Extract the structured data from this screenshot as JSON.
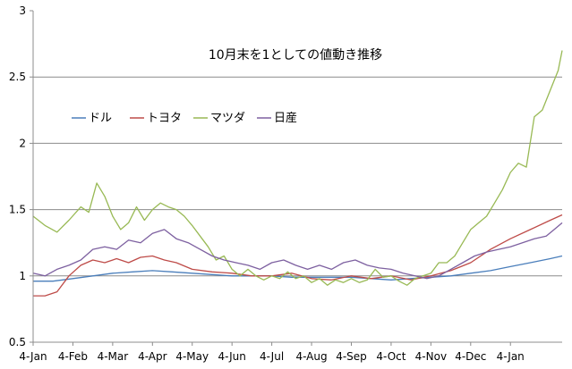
{
  "chart_data": {
    "type": "line",
    "title": "10月末を1としての値動き推移",
    "xlabel": "",
    "ylabel": "",
    "ylim": [
      0.5,
      3
    ],
    "yticks": [
      {
        "label": "0.5",
        "value": 0.5
      },
      {
        "label": "1",
        "value": 1
      },
      {
        "label": "1.5",
        "value": 1.5
      },
      {
        "label": "2",
        "value": 2
      },
      {
        "label": "2.5",
        "value": 2.5
      },
      {
        "label": "3",
        "value": 3
      }
    ],
    "x_tick_labels": [
      "4-Jan",
      "4-Feb",
      "4-Mar",
      "4-Apr",
      "4-May",
      "4-Jun",
      "4-Jul",
      "4-Aug",
      "4-Sep",
      "4-Oct",
      "4-Nov",
      "4-Dec",
      "4-Jan"
    ],
    "x_range": [
      0,
      13.3
    ],
    "grid": "horizontal at 1, 1.5, 2, 2.5",
    "legend_position": "upper-left inside plot",
    "series": [
      {
        "name": "ドル",
        "color": "#4a7ebb",
        "points": [
          [
            0,
            0.96
          ],
          [
            0.5,
            0.96
          ],
          [
            1,
            0.98
          ],
          [
            1.5,
            1.0
          ],
          [
            2,
            1.02
          ],
          [
            2.5,
            1.03
          ],
          [
            3,
            1.04
          ],
          [
            3.5,
            1.03
          ],
          [
            4,
            1.02
          ],
          [
            4.5,
            1.01
          ],
          [
            5,
            1.0
          ],
          [
            5.5,
            1.0
          ],
          [
            6,
            1.0
          ],
          [
            6.5,
            0.99
          ],
          [
            7,
            0.99
          ],
          [
            7.5,
            0.99
          ],
          [
            8,
            0.99
          ],
          [
            8.5,
            0.98
          ],
          [
            9,
            0.97
          ],
          [
            9.5,
            0.98
          ],
          [
            10,
            0.99
          ],
          [
            10.5,
            1.0
          ],
          [
            11,
            1.02
          ],
          [
            11.5,
            1.04
          ],
          [
            12,
            1.07
          ],
          [
            12.5,
            1.1
          ],
          [
            13,
            1.13
          ],
          [
            13.3,
            1.15
          ]
        ]
      },
      {
        "name": "トヨタ",
        "color": "#be4b48",
        "points": [
          [
            0,
            0.85
          ],
          [
            0.3,
            0.85
          ],
          [
            0.6,
            0.88
          ],
          [
            0.9,
            1.0
          ],
          [
            1.2,
            1.08
          ],
          [
            1.5,
            1.12
          ],
          [
            1.8,
            1.1
          ],
          [
            2.1,
            1.13
          ],
          [
            2.4,
            1.1
          ],
          [
            2.7,
            1.14
          ],
          [
            3.0,
            1.15
          ],
          [
            3.3,
            1.12
          ],
          [
            3.6,
            1.1
          ],
          [
            4.0,
            1.05
          ],
          [
            4.5,
            1.03
          ],
          [
            5,
            1.02
          ],
          [
            5.5,
            1.0
          ],
          [
            6,
            1.0
          ],
          [
            6.5,
            1.02
          ],
          [
            7,
            0.98
          ],
          [
            7.5,
            0.97
          ],
          [
            8,
            1.0
          ],
          [
            8.5,
            0.98
          ],
          [
            9,
            1.0
          ],
          [
            9.5,
            0.97
          ],
          [
            10,
            1.0
          ],
          [
            10.5,
            1.04
          ],
          [
            11,
            1.1
          ],
          [
            11.5,
            1.2
          ],
          [
            12,
            1.28
          ],
          [
            12.5,
            1.35
          ],
          [
            13,
            1.42
          ],
          [
            13.3,
            1.46
          ]
        ]
      },
      {
        "name": "マツダ",
        "color": "#98b954",
        "points": [
          [
            0,
            1.45
          ],
          [
            0.3,
            1.38
          ],
          [
            0.6,
            1.33
          ],
          [
            0.9,
            1.42
          ],
          [
            1.2,
            1.52
          ],
          [
            1.4,
            1.48
          ],
          [
            1.6,
            1.7
          ],
          [
            1.8,
            1.6
          ],
          [
            2.0,
            1.45
          ],
          [
            2.2,
            1.35
          ],
          [
            2.4,
            1.4
          ],
          [
            2.6,
            1.52
          ],
          [
            2.8,
            1.42
          ],
          [
            3.0,
            1.5
          ],
          [
            3.2,
            1.55
          ],
          [
            3.4,
            1.52
          ],
          [
            3.6,
            1.5
          ],
          [
            3.8,
            1.45
          ],
          [
            4.0,
            1.38
          ],
          [
            4.2,
            1.3
          ],
          [
            4.4,
            1.22
          ],
          [
            4.6,
            1.12
          ],
          [
            4.8,
            1.15
          ],
          [
            5.0,
            1.05
          ],
          [
            5.2,
            1.0
          ],
          [
            5.4,
            1.05
          ],
          [
            5.6,
            1.0
          ],
          [
            5.8,
            0.97
          ],
          [
            6.0,
            1.0
          ],
          [
            6.2,
            0.98
          ],
          [
            6.4,
            1.03
          ],
          [
            6.6,
            0.98
          ],
          [
            6.8,
            1.0
          ],
          [
            7.0,
            0.95
          ],
          [
            7.2,
            0.98
          ],
          [
            7.4,
            0.93
          ],
          [
            7.6,
            0.97
          ],
          [
            7.8,
            0.95
          ],
          [
            8.0,
            0.98
          ],
          [
            8.2,
            0.95
          ],
          [
            8.4,
            0.97
          ],
          [
            8.6,
            1.05
          ],
          [
            8.8,
            0.99
          ],
          [
            9.0,
            1.0
          ],
          [
            9.2,
            0.96
          ],
          [
            9.4,
            0.93
          ],
          [
            9.6,
            0.98
          ],
          [
            9.8,
            1.0
          ],
          [
            10.0,
            1.02
          ],
          [
            10.2,
            1.1
          ],
          [
            10.4,
            1.1
          ],
          [
            10.6,
            1.15
          ],
          [
            10.8,
            1.25
          ],
          [
            11.0,
            1.35
          ],
          [
            11.2,
            1.4
          ],
          [
            11.4,
            1.45
          ],
          [
            11.6,
            1.55
          ],
          [
            11.8,
            1.65
          ],
          [
            12.0,
            1.78
          ],
          [
            12.2,
            1.85
          ],
          [
            12.4,
            1.82
          ],
          [
            12.6,
            2.2
          ],
          [
            12.8,
            2.25
          ],
          [
            13.0,
            2.4
          ],
          [
            13.2,
            2.55
          ],
          [
            13.3,
            2.7
          ]
        ]
      },
      {
        "name": "日産",
        "color": "#7d60a0",
        "points": [
          [
            0,
            1.02
          ],
          [
            0.3,
            1.0
          ],
          [
            0.6,
            1.05
          ],
          [
            0.9,
            1.08
          ],
          [
            1.2,
            1.12
          ],
          [
            1.5,
            1.2
          ],
          [
            1.8,
            1.22
          ],
          [
            2.1,
            1.2
          ],
          [
            2.4,
            1.27
          ],
          [
            2.7,
            1.25
          ],
          [
            3.0,
            1.32
          ],
          [
            3.3,
            1.35
          ],
          [
            3.6,
            1.28
          ],
          [
            3.9,
            1.25
          ],
          [
            4.2,
            1.2
          ],
          [
            4.5,
            1.15
          ],
          [
            4.8,
            1.12
          ],
          [
            5.1,
            1.1
          ],
          [
            5.4,
            1.08
          ],
          [
            5.7,
            1.05
          ],
          [
            6.0,
            1.1
          ],
          [
            6.3,
            1.12
          ],
          [
            6.6,
            1.08
          ],
          [
            6.9,
            1.05
          ],
          [
            7.2,
            1.08
          ],
          [
            7.5,
            1.05
          ],
          [
            7.8,
            1.1
          ],
          [
            8.1,
            1.12
          ],
          [
            8.4,
            1.08
          ],
          [
            8.7,
            1.06
          ],
          [
            9.0,
            1.05
          ],
          [
            9.3,
            1.02
          ],
          [
            9.6,
            1.0
          ],
          [
            9.9,
            0.98
          ],
          [
            10.2,
            1.0
          ],
          [
            10.5,
            1.05
          ],
          [
            10.8,
            1.1
          ],
          [
            11.1,
            1.15
          ],
          [
            11.4,
            1.18
          ],
          [
            11.7,
            1.2
          ],
          [
            12.0,
            1.22
          ],
          [
            12.3,
            1.25
          ],
          [
            12.6,
            1.28
          ],
          [
            12.9,
            1.3
          ],
          [
            13.1,
            1.35
          ],
          [
            13.3,
            1.4
          ]
        ]
      }
    ]
  }
}
